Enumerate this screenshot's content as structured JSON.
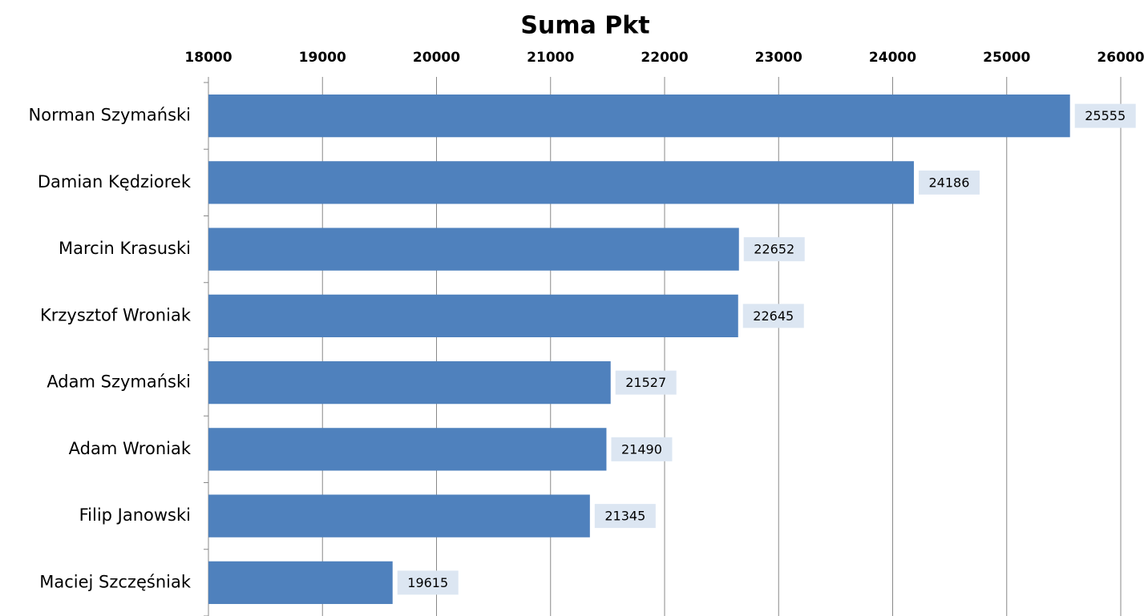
{
  "chart_data": {
    "type": "bar",
    "orientation": "horizontal",
    "title": "Suma Pkt",
    "categories": [
      "Norman Szymański",
      "Damian Kędziorek",
      "Marcin Krasuski",
      "Krzysztof Wroniak",
      "Adam Szymański",
      "Adam Wroniak",
      "Filip Janowski",
      "Maciej Szczęśniak"
    ],
    "values": [
      25555,
      24186,
      22652,
      22645,
      21527,
      21490,
      21345,
      19615
    ],
    "color": "#4f81bd",
    "xlim": [
      18000,
      26000
    ],
    "xticks": [
      18000,
      19000,
      20000,
      21000,
      22000,
      23000,
      24000,
      25000,
      26000
    ],
    "grid": true
  }
}
